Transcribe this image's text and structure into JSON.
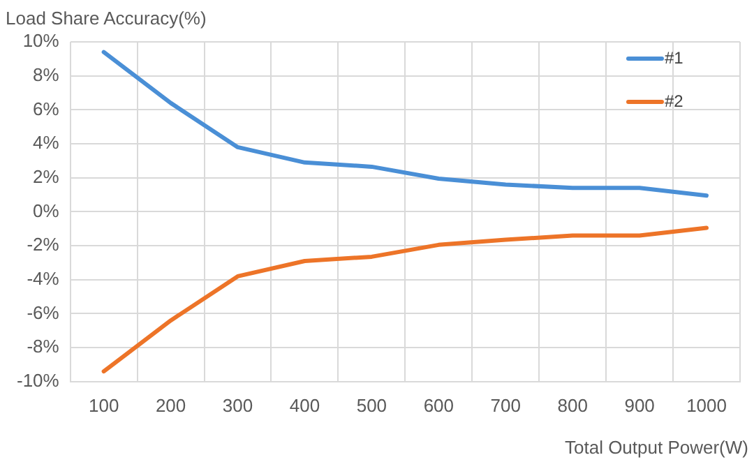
{
  "chart_data": {
    "type": "line",
    "ylabel": "Load Share Accuracy(%)",
    "xlabel": "Total Output Power(W)",
    "categories": [
      "100",
      "200",
      "300",
      "400",
      "500",
      "600",
      "700",
      "800",
      "900",
      "1000"
    ],
    "series": [
      {
        "name": "#1",
        "color": "#4a8fd6",
        "values": [
          9.4,
          6.4,
          3.8,
          2.9,
          2.65,
          1.95,
          1.6,
          1.4,
          1.4,
          0.95
        ]
      },
      {
        "name": "#2",
        "color": "#ed7428",
        "values": [
          -9.4,
          -6.4,
          -3.8,
          -2.9,
          -2.65,
          -1.95,
          -1.65,
          -1.4,
          -1.4,
          -0.95
        ]
      }
    ],
    "ylim": [
      -10,
      10
    ],
    "yticks": [
      {
        "value": -10,
        "label": "-10%"
      },
      {
        "value": -8,
        "label": "-8%"
      },
      {
        "value": -6,
        "label": "-6%"
      },
      {
        "value": -4,
        "label": "-4%"
      },
      {
        "value": -2,
        "label": "-2%"
      },
      {
        "value": 0,
        "label": "0%"
      },
      {
        "value": 2,
        "label": "2%"
      },
      {
        "value": 4,
        "label": "4%"
      },
      {
        "value": 6,
        "label": "6%"
      },
      {
        "value": 8,
        "label": "8%"
      },
      {
        "value": 10,
        "label": "10%"
      }
    ],
    "grid": true,
    "legend": "top right",
    "marker": "none",
    "line_style": "solid"
  }
}
